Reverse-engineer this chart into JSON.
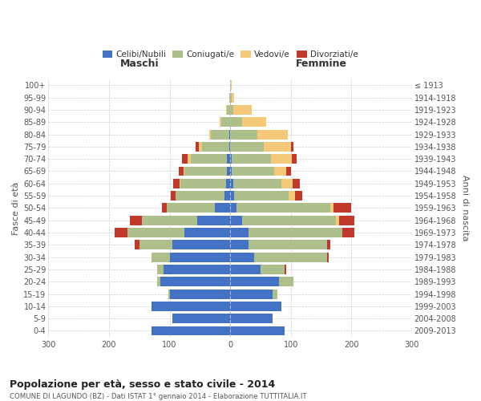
{
  "age_groups": [
    "0-4",
    "5-9",
    "10-14",
    "15-19",
    "20-24",
    "25-29",
    "30-34",
    "35-39",
    "40-44",
    "45-49",
    "50-54",
    "55-59",
    "60-64",
    "65-69",
    "70-74",
    "75-79",
    "80-84",
    "85-89",
    "90-94",
    "95-99",
    "100+"
  ],
  "birth_years": [
    "2009-2013",
    "2004-2008",
    "1999-2003",
    "1994-1998",
    "1989-1993",
    "1984-1988",
    "1979-1983",
    "1974-1978",
    "1969-1973",
    "1964-1968",
    "1959-1963",
    "1954-1958",
    "1949-1953",
    "1944-1948",
    "1939-1943",
    "1934-1938",
    "1929-1933",
    "1924-1928",
    "1919-1923",
    "1914-1918",
    "≤ 1913"
  ],
  "males": {
    "celibi": [
      130,
      95,
      130,
      100,
      115,
      110,
      100,
      95,
      75,
      55,
      25,
      10,
      7,
      5,
      5,
      2,
      2,
      0,
      0,
      0,
      0
    ],
    "coniugati": [
      0,
      0,
      0,
      2,
      5,
      10,
      30,
      55,
      95,
      90,
      80,
      80,
      75,
      70,
      60,
      45,
      30,
      15,
      5,
      1,
      0
    ],
    "vedovi": [
      0,
      0,
      0,
      0,
      0,
      0,
      0,
      0,
      0,
      0,
      0,
      0,
      2,
      2,
      5,
      5,
      3,
      2,
      2,
      0,
      0
    ],
    "divorziati": [
      0,
      0,
      0,
      0,
      0,
      0,
      0,
      7,
      20,
      20,
      7,
      8,
      10,
      8,
      10,
      5,
      0,
      0,
      0,
      0,
      0
    ]
  },
  "females": {
    "nubili": [
      90,
      70,
      85,
      70,
      80,
      50,
      40,
      30,
      30,
      20,
      10,
      7,
      5,
      3,
      2,
      0,
      0,
      0,
      0,
      0,
      0
    ],
    "coniugate": [
      0,
      0,
      0,
      8,
      25,
      40,
      120,
      130,
      155,
      155,
      155,
      90,
      80,
      70,
      65,
      55,
      45,
      20,
      5,
      2,
      0
    ],
    "vedove": [
      0,
      0,
      0,
      0,
      0,
      0,
      0,
      0,
      0,
      5,
      5,
      10,
      18,
      20,
      35,
      45,
      50,
      40,
      30,
      5,
      2
    ],
    "divorziate": [
      0,
      0,
      0,
      0,
      0,
      2,
      2,
      5,
      20,
      25,
      30,
      12,
      12,
      8,
      8,
      5,
      0,
      0,
      0,
      0,
      0
    ]
  },
  "colors": {
    "celibi": "#4472C4",
    "coniugati": "#ADBF8B",
    "vedovi": "#F5C97A",
    "divorziati": "#C0392B"
  },
  "title": "Popolazione per età, sesso e stato civile - 2014",
  "subtitle": "COMUNE DI LAGUNDO (BZ) - Dati ISTAT 1° gennaio 2014 - Elaborazione TUTTITALIA.IT",
  "xlabel_left": "Maschi",
  "xlabel_right": "Femmine",
  "ylabel_left": "Fasce di età",
  "ylabel_right": "Anni di nascita",
  "xlim": 300,
  "legend_labels": [
    "Celibi/Nubili",
    "Coniugati/e",
    "Vedovi/e",
    "Divorziati/e"
  ],
  "bg_color": "#ffffff",
  "grid_color": "#cccccc"
}
